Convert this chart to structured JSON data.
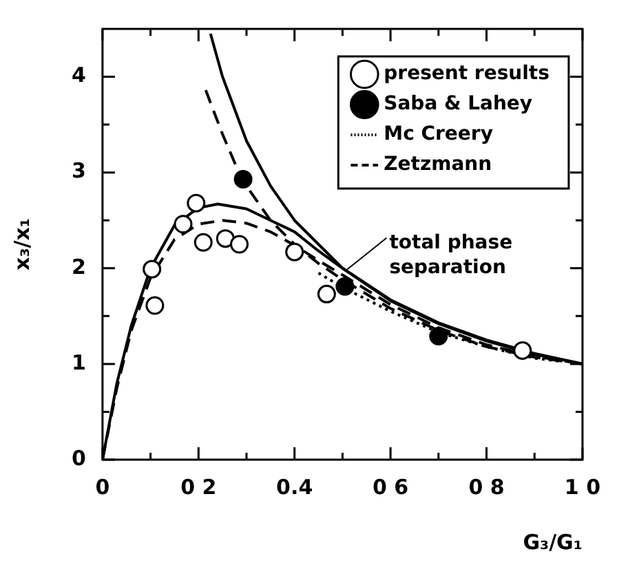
{
  "chart_data": {
    "type": "line",
    "xlabel": "G₃/G₁",
    "ylabel": "x₃/x₁",
    "xlim": [
      0,
      1
    ],
    "ylim": [
      0,
      4.5
    ],
    "xticks": [
      0,
      {
        "value": 0.1,
        "label": null
      },
      {
        "value": 0.2,
        "label": "0 2"
      },
      {
        "value": 0.3,
        "label": null
      },
      0.4,
      {
        "value": 0.5,
        "label": null
      },
      {
        "value": 0.6,
        "label": "0 6"
      },
      {
        "value": 0.7,
        "label": null
      },
      {
        "value": 0.8,
        "label": "0 8"
      },
      {
        "value": 0.9,
        "label": null
      },
      {
        "value": 1,
        "label": "1 0"
      }
    ],
    "yticks": [
      0,
      {
        "value": 0.5,
        "label": null
      },
      1,
      {
        "value": 1.5,
        "label": null
      },
      2,
      {
        "value": 2.5,
        "label": null
      },
      3,
      {
        "value": 3.5,
        "label": null
      },
      4
    ],
    "grid": false,
    "legend": "top right",
    "series": [
      {
        "name": "present results",
        "type": "scatter",
        "marker": "circle",
        "color": "#ffffff",
        "x": [
          0.103,
          0.109,
          0.168,
          0.195,
          0.21,
          0.256,
          0.285,
          0.4,
          0.467,
          0.875
        ],
        "values": [
          1.99,
          1.61,
          2.46,
          2.68,
          2.27,
          2.31,
          2.25,
          2.17,
          1.73,
          1.14
        ]
      },
      {
        "type": "line",
        "line_style": "solid",
        "color": "#000000",
        "x": [
          0,
          0.03,
          0.06,
          0.1,
          0.15,
          0.2,
          0.24,
          0.3,
          0.35,
          0.4,
          0.45,
          0.5,
          0.6,
          0.7,
          0.8,
          0.9,
          1.0
        ],
        "values": [
          0,
          0.8,
          1.4,
          2.0,
          2.45,
          2.63,
          2.67,
          2.62,
          2.5,
          2.38,
          2.18,
          2.0,
          1.66,
          1.42,
          1.24,
          1.1,
          1.0
        ]
      },
      {
        "name": "Saba & Lahey",
        "type": "scatter",
        "marker": "circle",
        "color": "#000000",
        "x": [
          0.293,
          0.505,
          0.7
        ],
        "values": [
          2.93,
          1.81,
          1.29
        ]
      },
      {
        "type": "line",
        "line_style": "dashed",
        "color": "#000000",
        "x": [
          0.215,
          0.25,
          0.29,
          0.35,
          0.4,
          0.45,
          0.5,
          0.6,
          0.7,
          0.8,
          0.9,
          1.0
        ],
        "values": [
          3.86,
          3.4,
          2.93,
          2.5,
          2.25,
          2.05,
          1.88,
          1.58,
          1.35,
          1.18,
          1.07,
          1.0
        ]
      },
      {
        "name": "Mc Creery",
        "type": "line",
        "line_style": "dotted",
        "color": "#000000",
        "x": [
          0.45,
          0.5,
          0.6,
          0.7,
          0.8,
          0.9,
          0.95
        ],
        "values": [
          1.95,
          1.8,
          1.55,
          1.33,
          1.18,
          1.06,
          1.03
        ]
      },
      {
        "name": "Zetzmann",
        "type": "line",
        "line_style": "dashed",
        "color": "#000000",
        "x": [
          0,
          0.03,
          0.06,
          0.1,
          0.15,
          0.2,
          0.25,
          0.3,
          0.35,
          0.4,
          0.45,
          0.5,
          0.6,
          0.7,
          0.8,
          0.9,
          1.0
        ],
        "values": [
          0,
          0.75,
          1.35,
          1.9,
          2.3,
          2.46,
          2.5,
          2.47,
          2.38,
          2.24,
          2.08,
          1.93,
          1.62,
          1.38,
          1.2,
          1.08,
          1.0
        ]
      },
      {
        "type": "line",
        "line_style": "solid",
        "color": "#000000",
        "x": [
          0.225,
          0.25,
          0.3,
          0.35,
          0.4,
          0.5,
          0.6,
          0.7,
          0.8,
          0.9,
          1.0
        ],
        "values": [
          4.45,
          4.0,
          3.33,
          2.86,
          2.5,
          2.0,
          1.67,
          1.43,
          1.25,
          1.11,
          1.0
        ]
      }
    ],
    "annotations": [
      {
        "text": "total phase separation",
        "x": 0.5,
        "y": 2.0
      }
    ]
  }
}
